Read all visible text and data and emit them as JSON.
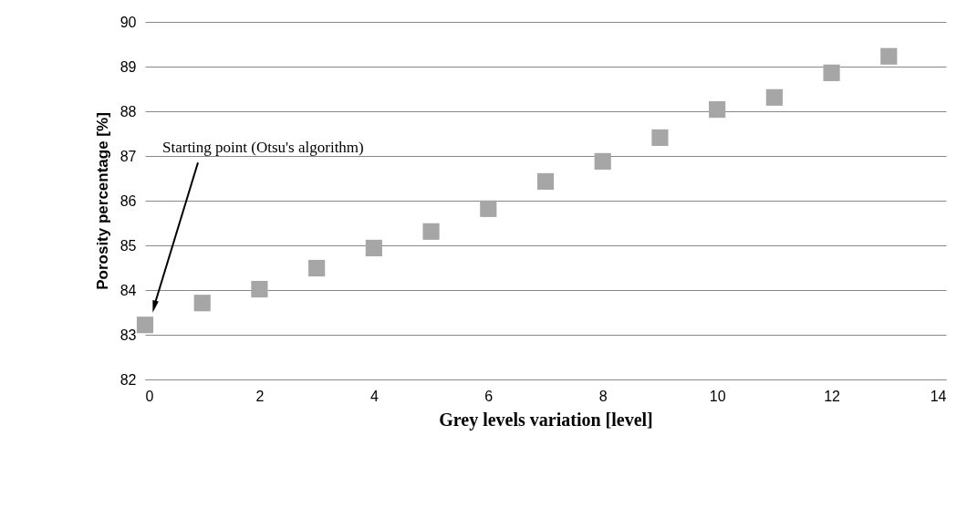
{
  "chart_data": {
    "type": "scatter",
    "xlabel": "Grey levels variation [level]",
    "ylabel": "Porosity percentage [%]",
    "x": [
      0,
      1,
      2,
      3,
      4,
      5,
      6,
      7,
      8,
      9,
      10,
      11,
      12,
      13
    ],
    "series": [
      {
        "color": "#a6a6a6",
        "values": [
          83.22,
          83.71,
          84.02,
          84.49,
          84.94,
          85.31,
          85.82,
          86.43,
          86.88,
          87.41,
          88.04,
          88.31,
          88.86,
          89.23
        ]
      }
    ],
    "xlim": [
      0,
      14
    ],
    "xticks": [
      0,
      2,
      4,
      6,
      8,
      10,
      12,
      14
    ],
    "ylim": [
      82,
      90
    ],
    "yticks": [
      82,
      83,
      84,
      85,
      86,
      87,
      88,
      89,
      90
    ],
    "grid": "y",
    "marker": "square",
    "annotations": [
      "Starting point (Otsu's algorithm)"
    ]
  }
}
